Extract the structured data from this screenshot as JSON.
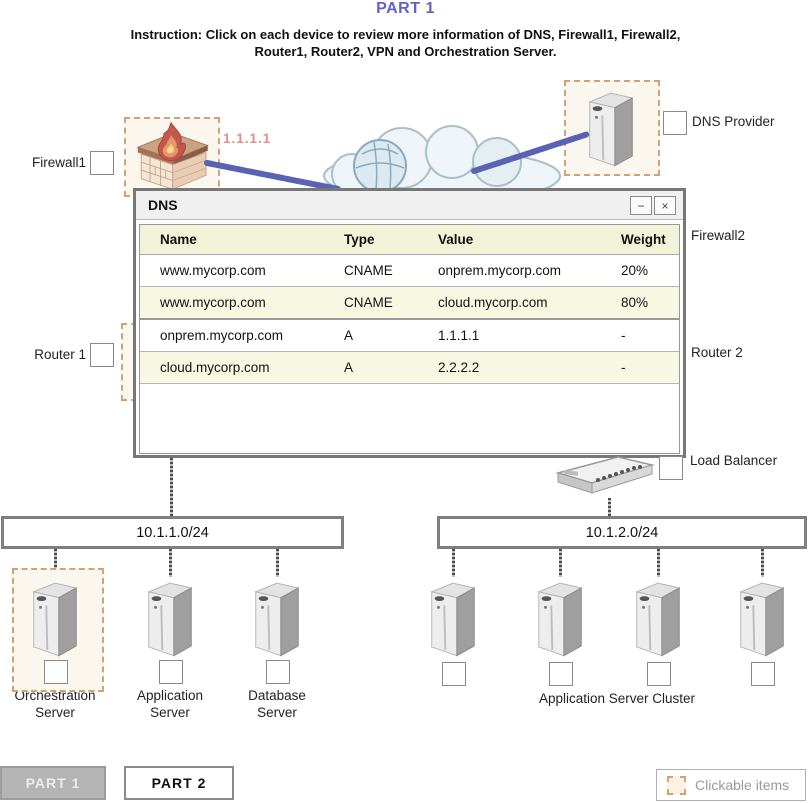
{
  "header": {
    "title": "PART 1",
    "instruction_line1": "Instruction: Click on each device to review more information of DNS, Firewall1, Firewall2,",
    "instruction_line2": "Router1, Router2, VPN and Orchestration Server."
  },
  "colors": {
    "title_accent": "#6262c6",
    "connection_blue": "#5a62b3",
    "ip_pink": "#e08f8f",
    "table_cream": "#f2f2d9",
    "clickable_dash": "#d0a376",
    "clickable_fill": "#fbf7ee"
  },
  "diagram": {
    "firewall1_label": "Firewall1",
    "firewall1_ip": "1.1.1.1",
    "dns_provider_label": "DNS Provider",
    "firewall2_label": "Firewall2",
    "router1_label": "Router 1",
    "router2_label": "Router 2",
    "load_balancer_label": "Load Balancer",
    "subnet_left": "10.1.1.0/24",
    "subnet_right": "10.1.2.0/24",
    "servers_left": [
      {
        "label_line1": "Orchestration",
        "label_line2": "Server"
      },
      {
        "label_line1": "Application",
        "label_line2": "Server"
      },
      {
        "label_line1": "Database",
        "label_line2": "Server"
      }
    ],
    "cluster_label": "Application Server Cluster"
  },
  "dialog": {
    "title": "DNS",
    "icons": {
      "minimize_glyph": "−",
      "close_glyph": "×"
    },
    "table": {
      "headers": [
        "Name",
        "Type",
        "Value",
        "Weight"
      ],
      "rows": [
        [
          "www.mycorp.com",
          "CNAME",
          "onprem.mycorp.com",
          "20%"
        ],
        [
          "www.mycorp.com",
          "CNAME",
          "cloud.mycorp.com",
          "80%"
        ],
        [
          "onprem.mycorp.com",
          "A",
          "1.1.1.1",
          "-"
        ],
        [
          "cloud.mycorp.com",
          "A",
          "2.2.2.2",
          "-"
        ]
      ]
    }
  },
  "footer": {
    "part1_label": "PART 1",
    "part2_label": "PART 2",
    "legend_label": "Clickable items"
  }
}
